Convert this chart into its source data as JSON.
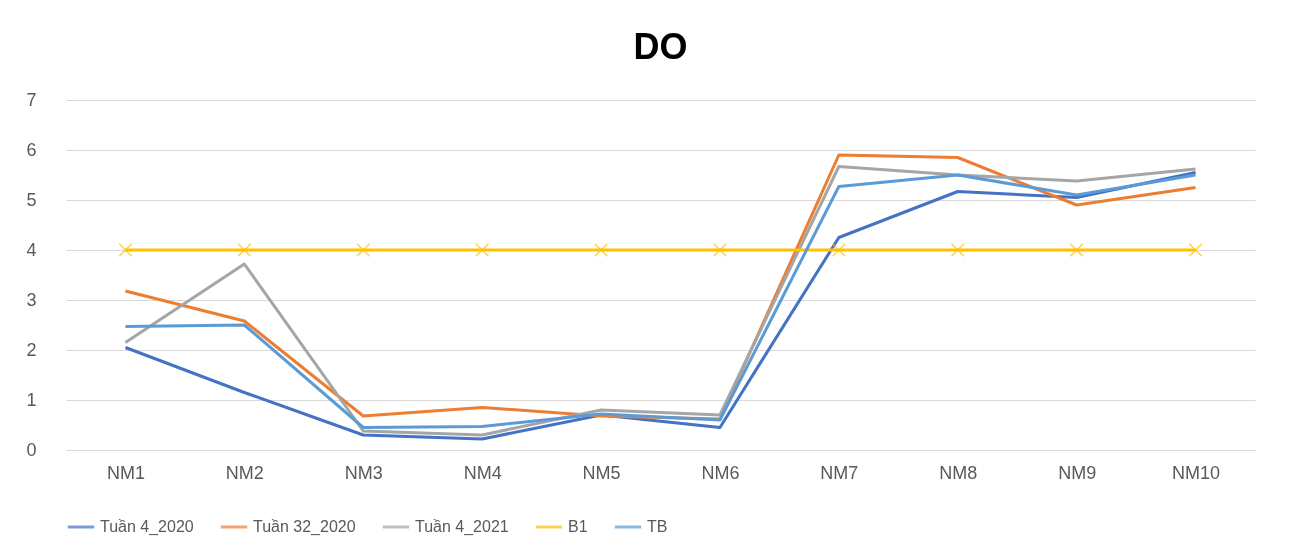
{
  "chart_data": {
    "type": "line",
    "title": "DO",
    "categories": [
      "NM1",
      "NM2",
      "NM3",
      "NM4",
      "NM5",
      "NM6",
      "NM7",
      "NM8",
      "NM9",
      "NM10"
    ],
    "series": [
      {
        "name": "Tuần 4_2020",
        "color": "#4472c4",
        "values": [
          2.05,
          1.15,
          0.3,
          0.22,
          0.7,
          0.45,
          4.25,
          5.17,
          5.05,
          5.55
        ]
      },
      {
        "name": "Tuần 32_2020",
        "color": "#ed7d31",
        "values": [
          3.18,
          2.58,
          0.68,
          0.85,
          0.68,
          0.62,
          5.9,
          5.85,
          4.9,
          5.25
        ]
      },
      {
        "name": "Tuần 4_2021",
        "color": "#a5a5a5",
        "values": [
          2.15,
          3.72,
          0.38,
          0.3,
          0.8,
          0.7,
          5.67,
          5.5,
          5.38,
          5.62
        ]
      },
      {
        "name": "B1",
        "color": "#ffc000",
        "marker": "cross",
        "values": [
          4,
          4,
          4,
          4,
          4,
          4,
          4,
          4,
          4,
          4
        ]
      },
      {
        "name": "TB",
        "color": "#5b9bd5",
        "values": [
          2.47,
          2.5,
          0.45,
          0.47,
          0.72,
          0.6,
          5.27,
          5.5,
          5.1,
          5.5
        ]
      }
    ],
    "ylim": [
      0,
      7
    ],
    "yticks": [
      0,
      1,
      2,
      3,
      4,
      5,
      6,
      7
    ],
    "grid": "y",
    "legend": "bottom",
    "marker": "none"
  }
}
